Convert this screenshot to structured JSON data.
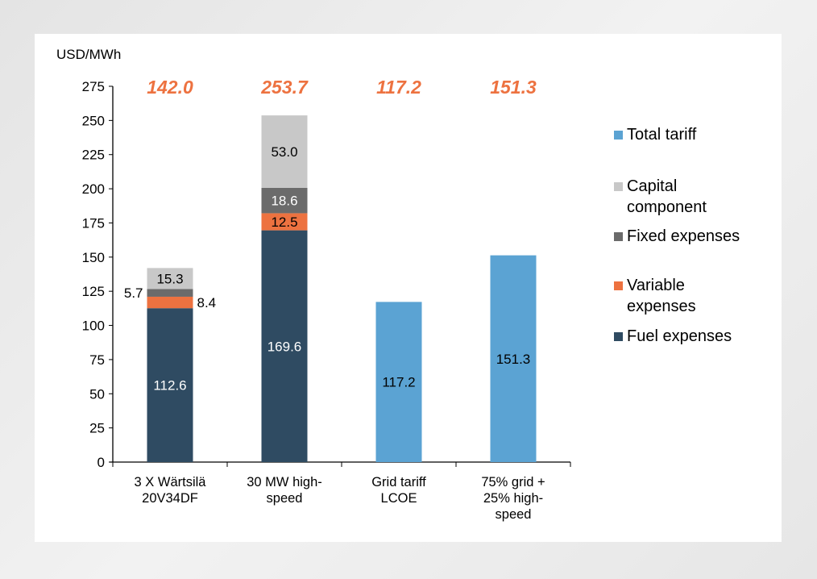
{
  "chart_data": {
    "type": "bar",
    "stacked": true,
    "ylabel": "USD/MWh",
    "ylim": [
      0,
      275
    ],
    "yticks": [
      0,
      25,
      50,
      75,
      100,
      125,
      150,
      175,
      200,
      225,
      250,
      275
    ],
    "categories": [
      "3 X Wärtsilä 20V34DF",
      "30 MW high-speed",
      "Grid tariff LCOE",
      "75% grid + 25% high-speed"
    ],
    "totals": [
      "142.0",
      "253.7",
      "117.2",
      "151.3"
    ],
    "series": [
      {
        "name": "Fuel expenses",
        "color": "#2f4b62",
        "label_color": "#ffffff",
        "values": [
          112.6,
          169.6,
          null,
          null
        ]
      },
      {
        "name": "Variable expenses",
        "color": "#ed7240",
        "label_color": "#000000",
        "values": [
          8.4,
          12.5,
          null,
          null
        ]
      },
      {
        "name": "Fixed expenses",
        "color": "#6b6b6b",
        "label_color": "#ffffff",
        "values": [
          5.7,
          18.6,
          null,
          null
        ]
      },
      {
        "name": "Capital component",
        "color": "#c8c8c8",
        "label_color": "#000000",
        "values": [
          15.3,
          53.0,
          null,
          null
        ]
      },
      {
        "name": "Total tariff",
        "color": "#5ba3d3",
        "label_color": "#000000",
        "values": [
          null,
          null,
          117.2,
          151.3
        ]
      }
    ],
    "legend": [
      "Total tariff",
      "Capital component",
      "Fixed expenses",
      "Variable expenses",
      "Fuel expenses"
    ],
    "legend_placement": "right",
    "total_label_color": "#ed7240",
    "grid": false
  }
}
